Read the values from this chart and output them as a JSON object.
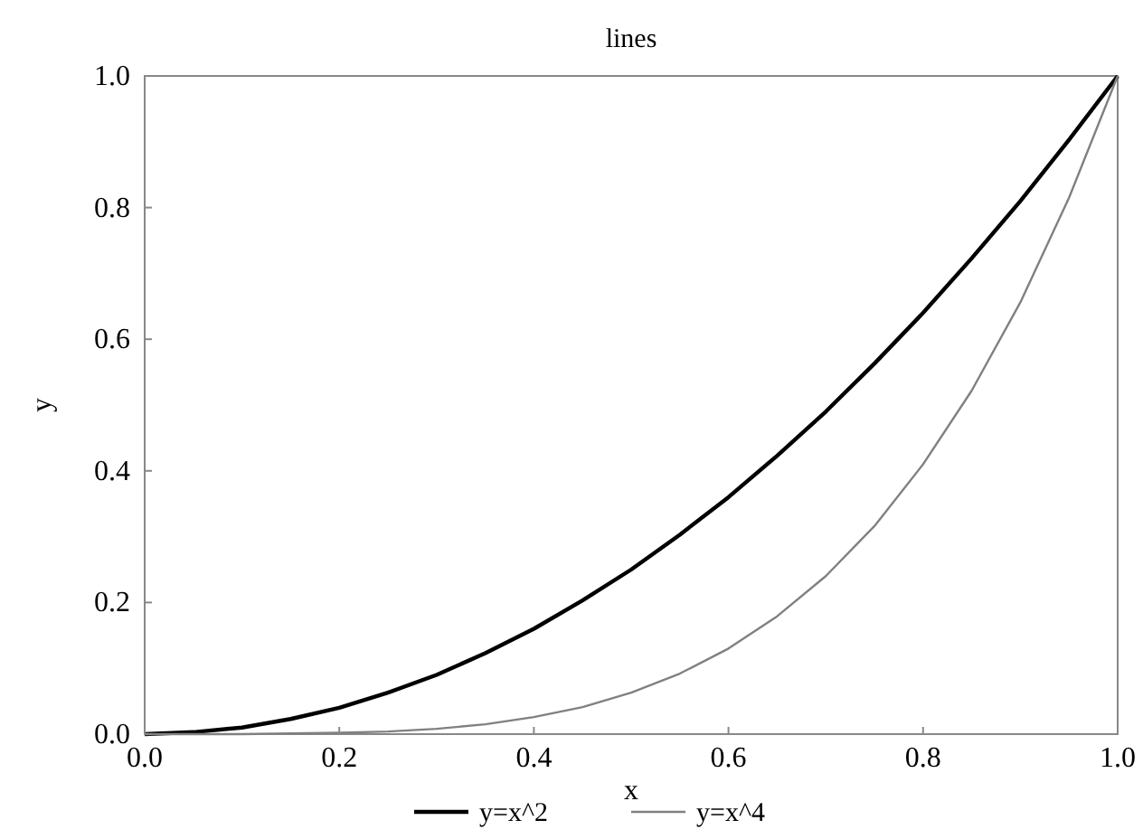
{
  "chart_data": {
    "type": "line",
    "title": "lines",
    "xlabel": "x",
    "ylabel": "y",
    "x": [
      0,
      0.05,
      0.1,
      0.15,
      0.2,
      0.25,
      0.3,
      0.35,
      0.4,
      0.45,
      0.5,
      0.55,
      0.6,
      0.65,
      0.7,
      0.75,
      0.8,
      0.85,
      0.9,
      0.95,
      1
    ],
    "series": [
      {
        "name": "y=x^2",
        "color": "#000000",
        "values": [
          0,
          0.003,
          0.01,
          0.023,
          0.04,
          0.063,
          0.09,
          0.123,
          0.16,
          0.203,
          0.25,
          0.303,
          0.36,
          0.423,
          0.49,
          0.563,
          0.64,
          0.723,
          0.81,
          0.903,
          1
        ]
      },
      {
        "name": "y=x^4",
        "color": "#808080",
        "values": [
          0,
          0,
          0,
          0.001,
          0.002,
          0.004,
          0.008,
          0.015,
          0.026,
          0.041,
          0.063,
          0.092,
          0.13,
          0.179,
          0.24,
          0.316,
          0.41,
          0.522,
          0.656,
          0.815,
          1
        ]
      }
    ],
    "xlim": [
      0,
      1
    ],
    "ylim": [
      0,
      1
    ],
    "xticks": [
      {
        "value": 0,
        "label": "0.0"
      },
      {
        "value": 0.2,
        "label": "0.2"
      },
      {
        "value": 0.4,
        "label": "0.4"
      },
      {
        "value": 0.6,
        "label": "0.6"
      },
      {
        "value": 0.8,
        "label": "0.8"
      },
      {
        "value": 1,
        "label": "1.0"
      }
    ],
    "yticks": [
      {
        "value": 0,
        "label": "0.0"
      },
      {
        "value": 0.2,
        "label": "0.2"
      },
      {
        "value": 0.4,
        "label": "0.4"
      },
      {
        "value": 0.6,
        "label": "0.6"
      },
      {
        "value": 0.8,
        "label": "0.8"
      },
      {
        "value": 1,
        "label": "1.0"
      }
    ],
    "legend": "bottom",
    "grid": false,
    "marker": "none",
    "line_style": "solid"
  }
}
